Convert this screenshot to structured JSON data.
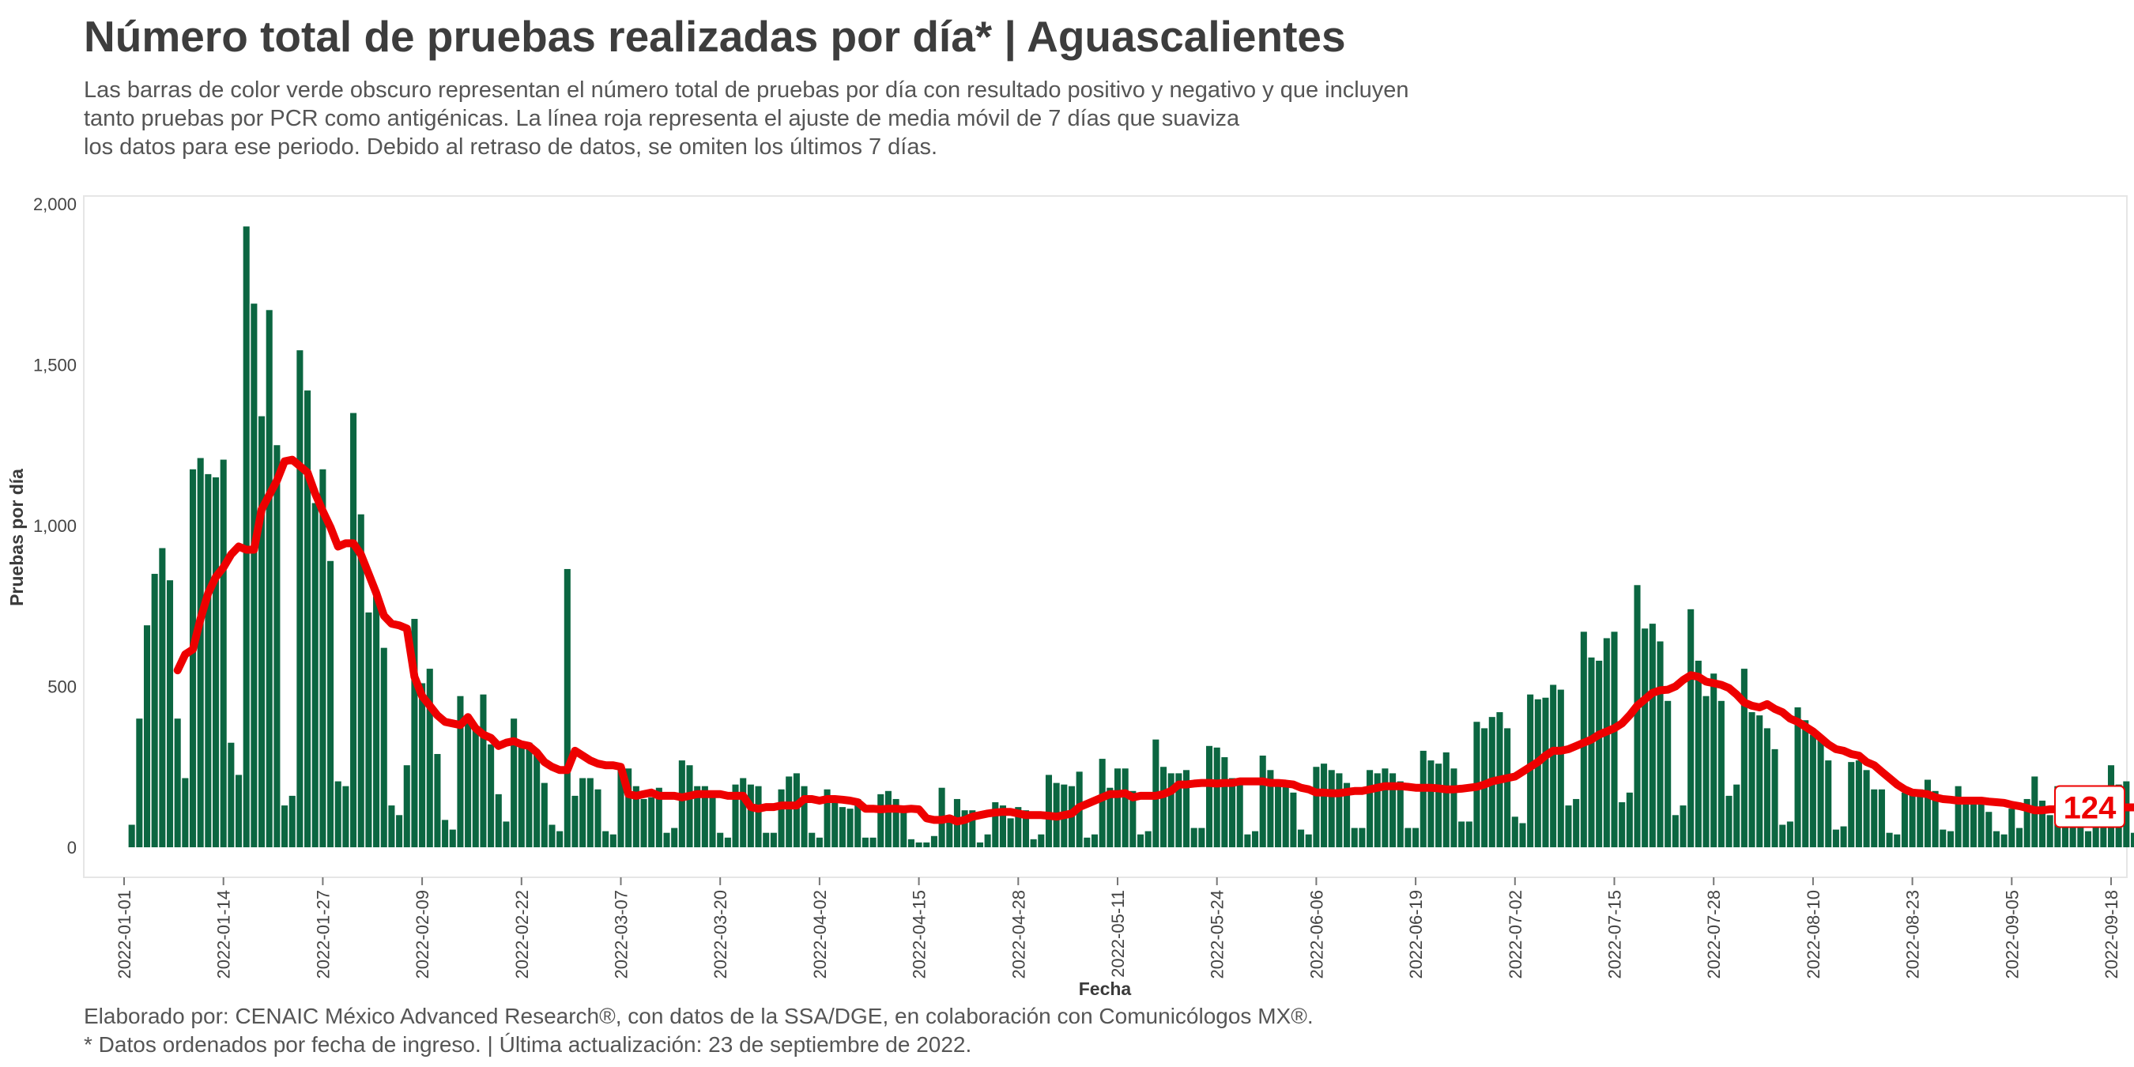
{
  "title": "Número total de pruebas realizadas por día* | Aguascalientes",
  "subtitle": [
    "Las barras de color verde obscuro representan el número total de pruebas por día con resultado positivo y negativo y que incluyen",
    "tanto pruebas por PCR como antigénicas. La línea roja representa el ajuste de media móvil de 7 días que suaviza",
    "los datos para ese periodo. Debido al retraso de datos, se omiten los últimos 7 días."
  ],
  "caption": [
    "Elaborado por: CENAIC México Advanced Research®, con datos de la SSA/DGE, en colaboración con Comunicólogos MX®.",
    "* Datos ordenados por fecha de ingreso. | Última actualización: 23 de septiembre de 2022."
  ],
  "colors": {
    "bars": "#0b6641",
    "line": "#ee0000",
    "label_text": "#ee0000"
  },
  "chart_data": {
    "type": "bar",
    "xlabel": "Fecha",
    "ylabel": "Pruebas por día",
    "start_date": "2022-01-02",
    "ylim": [
      0,
      2000
    ],
    "yticks": [
      0,
      500,
      1000,
      1500,
      2000
    ],
    "ytick_labels": [
      "0",
      "500",
      "1,000",
      "1,500",
      "2,000"
    ],
    "xticks": [
      "2022-01-01",
      "2022-01-14",
      "2022-01-27",
      "2022-02-09",
      "2022-02-22",
      "2022-03-07",
      "2022-03-20",
      "2022-04-02",
      "2022-04-15",
      "2022-04-28",
      "2022-05-11",
      "2022-05-24",
      "2022-06-06",
      "2022-06-19",
      "2022-07-02",
      "2022-07-15",
      "2022-07-28",
      "2022-08-10",
      "2022-08-23",
      "2022-09-05",
      "2022-09-18"
    ],
    "last_value_label": "124",
    "grid": false,
    "series": [
      {
        "name": "Pruebas por día",
        "type": "bar",
        "values": [
          70,
          400,
          690,
          850,
          930,
          830,
          400,
          215,
          1175,
          1210,
          1160,
          1150,
          1205,
          325,
          225,
          1930,
          1690,
          1340,
          1670,
          1250,
          130,
          160,
          1545,
          1420,
          1070,
          1175,
          890,
          205,
          190,
          1350,
          1035,
          730,
          780,
          620,
          130,
          100,
          255,
          710,
          510,
          555,
          290,
          85,
          55,
          470,
          410,
          375,
          475,
          320,
          165,
          80,
          400,
          330,
          325,
          290,
          200,
          70,
          50,
          865,
          160,
          215,
          215,
          180,
          50,
          40,
          255,
          245,
          190,
          150,
          155,
          185,
          45,
          60,
          270,
          255,
          190,
          190,
          170,
          45,
          30,
          195,
          215,
          195,
          190,
          45,
          45,
          180,
          220,
          230,
          190,
          45,
          30,
          180,
          155,
          125,
          120,
          150,
          30,
          30,
          165,
          175,
          150,
          120,
          25,
          15,
          15,
          35,
          185,
          100,
          150,
          115,
          115,
          15,
          40,
          140,
          130,
          90,
          125,
          115,
          25,
          40,
          225,
          200,
          195,
          190,
          235,
          30,
          40,
          275,
          185,
          245,
          245,
          175,
          40,
          50,
          335,
          250,
          230,
          230,
          240,
          60,
          60,
          315,
          310,
          280,
          215,
          210,
          40,
          50,
          285,
          240,
          210,
          190,
          170,
          55,
          40,
          250,
          260,
          240,
          230,
          200,
          60,
          60,
          240,
          230,
          245,
          230,
          205,
          60,
          60,
          300,
          270,
          260,
          295,
          245,
          80,
          80,
          390,
          370,
          405,
          420,
          370,
          95,
          75,
          475,
          460,
          465,
          505,
          490,
          130,
          150,
          670,
          590,
          580,
          650,
          670,
          140,
          170,
          815,
          680,
          695,
          640,
          455,
          100,
          130,
          740,
          580,
          470,
          540,
          455,
          160,
          195,
          555,
          420,
          410,
          370,
          305,
          70,
          80,
          435,
          395,
          350,
          335,
          270,
          55,
          65,
          265,
          270,
          240,
          180,
          180,
          45,
          40,
          170,
          165,
          180,
          210,
          175,
          55,
          50,
          190,
          155,
          145,
          150,
          110,
          50,
          40,
          120,
          60,
          150,
          220,
          145,
          100,
          190,
          145,
          150,
          70,
          50,
          135,
          100,
          255,
          195,
          205,
          45
        ]
      },
      {
        "name": "Media móvil de 7 días",
        "type": "line",
        "start_index": 6,
        "values": [
          550,
          600,
          615,
          710,
          790,
          840,
          870,
          910,
          935,
          925,
          925,
          1050,
          1095,
          1140,
          1200,
          1205,
          1185,
          1165,
          1100,
          1045,
          995,
          935,
          945,
          945,
          910,
          850,
          790,
          720,
          695,
          690,
          680,
          530,
          470,
          440,
          410,
          390,
          385,
          380,
          405,
          370,
          350,
          340,
          315,
          325,
          330,
          320,
          315,
          295,
          265,
          250,
          240,
          240,
          300,
          285,
          270,
          260,
          255,
          255,
          250,
          165,
          160,
          165,
          170,
          160,
          160,
          160,
          155,
          160,
          165,
          165,
          165,
          165,
          160,
          160,
          160,
          125,
          120,
          125,
          125,
          130,
          130,
          130,
          150,
          150,
          145,
          150,
          150,
          148,
          145,
          140,
          120,
          120,
          118,
          120,
          120,
          118,
          120,
          118,
          90,
          85,
          85,
          90,
          80,
          85,
          95,
          100,
          105,
          108,
          110,
          110,
          105,
          100,
          100,
          100,
          98,
          95,
          100,
          105,
          125,
          135,
          145,
          155,
          165,
          165,
          168,
          155,
          160,
          160,
          160,
          165,
          175,
          195,
          195,
          198,
          200,
          200,
          198,
          200,
          200,
          205,
          205,
          205,
          205,
          200,
          200,
          198,
          195,
          185,
          180,
          170,
          170,
          168,
          168,
          172,
          175,
          175,
          180,
          185,
          190,
          190,
          190,
          188,
          185,
          185,
          185,
          183,
          180,
          180,
          182,
          185,
          188,
          195,
          205,
          210,
          215,
          220,
          235,
          250,
          265,
          285,
          300,
          300,
          305,
          315,
          325,
          335,
          350,
          360,
          370,
          385,
          410,
          440,
          460,
          480,
          488,
          490,
          500,
          520,
          535,
          530,
          515,
          510,
          505,
          495,
          475,
          450,
          440,
          435,
          445,
          430,
          420,
          400,
          390,
          375,
          360,
          340,
          320,
          305,
          300,
          290,
          285,
          265,
          255,
          235,
          215,
          195,
          180,
          170,
          168,
          165,
          155,
          150,
          148,
          145,
          145,
          145,
          145,
          142,
          140,
          138,
          132,
          128,
          122,
          115,
          115,
          118,
          118,
          120,
          122,
          122,
          124,
          124,
          124,
          124,
          124,
          124,
          124
        ]
      }
    ]
  }
}
